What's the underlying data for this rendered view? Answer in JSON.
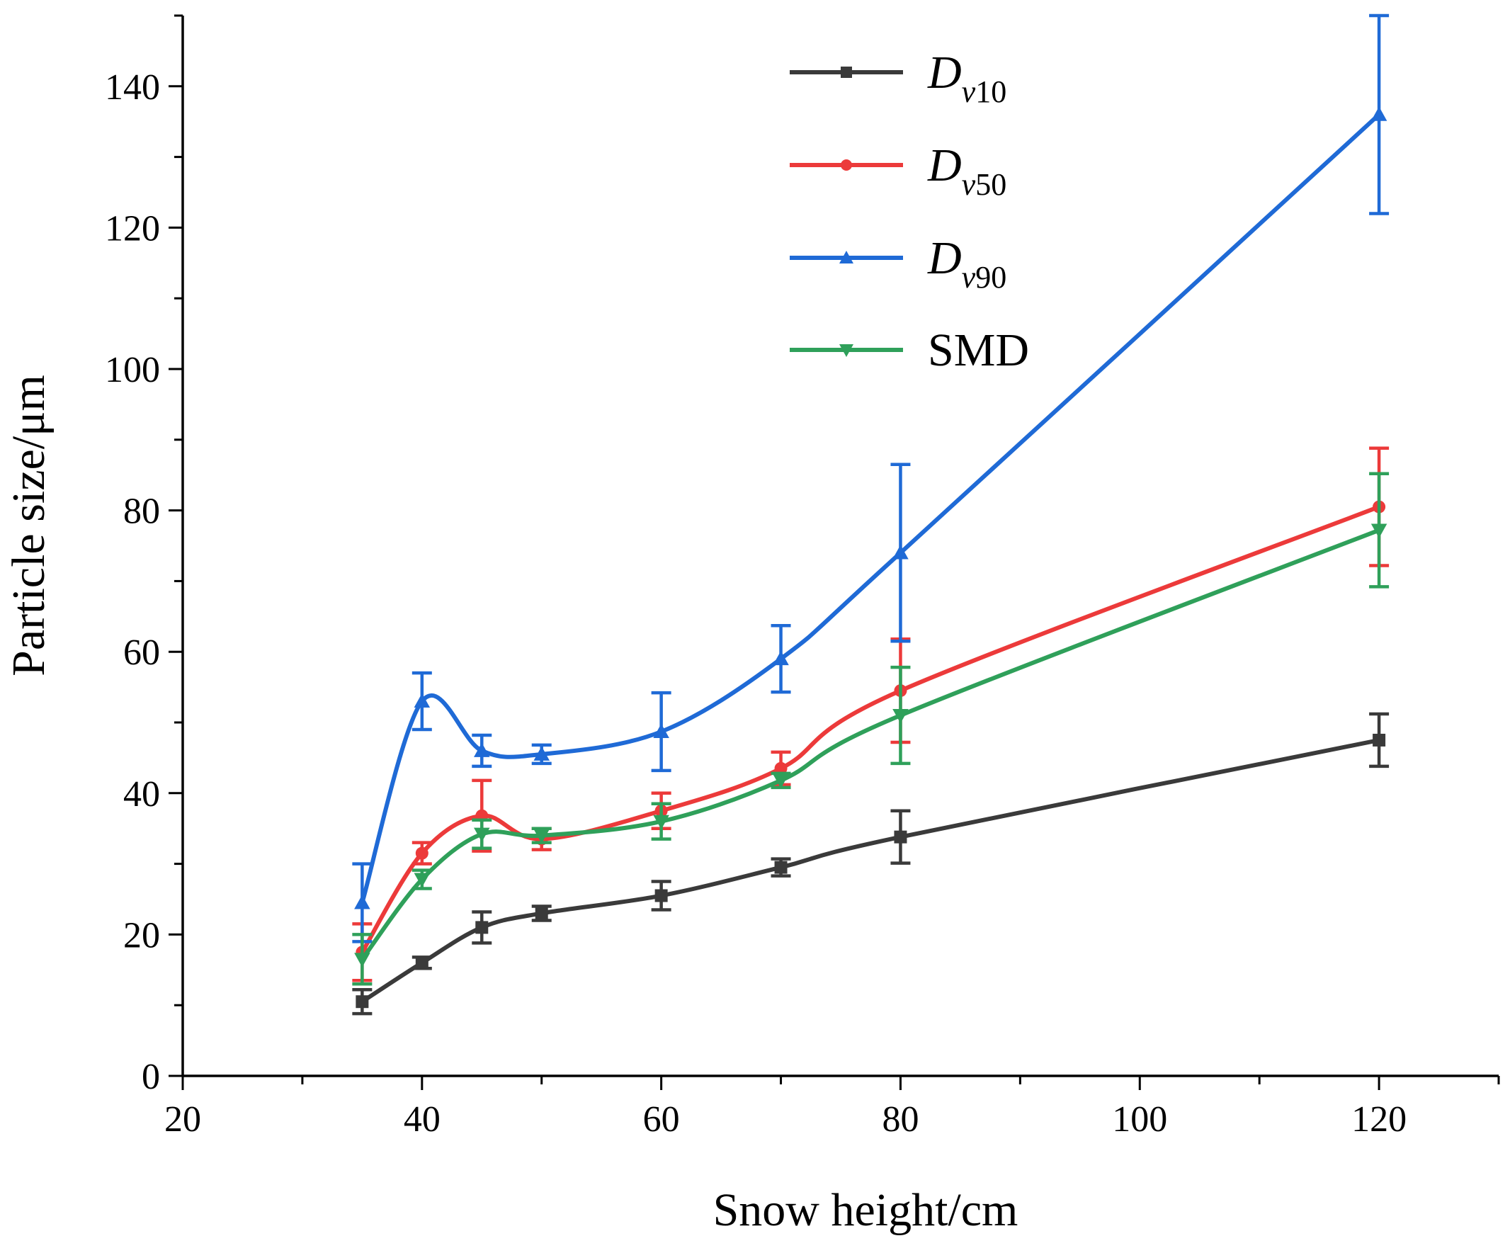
{
  "chart_data": {
    "type": "line",
    "title": "",
    "xlabel": "Snow height/cm",
    "ylabel": "Particle size/μm",
    "xlim": [
      20,
      130
    ],
    "ylim": [
      0,
      150
    ],
    "xticks": [
      20,
      40,
      60,
      80,
      100,
      120
    ],
    "yticks": [
      0,
      20,
      40,
      60,
      80,
      100,
      120,
      140
    ],
    "x_tick_labels": [
      "20",
      "40",
      "60",
      "80",
      "100",
      "120"
    ],
    "y_tick_labels": [
      "0",
      "20",
      "40",
      "60",
      "80",
      "100",
      "120",
      "140"
    ],
    "x": [
      35,
      40,
      45,
      50,
      60,
      70,
      80,
      120
    ],
    "legend_position": "top-center",
    "series": [
      {
        "name": "Dv10",
        "label_main": "D",
        "label_sub": "v10",
        "color": "#3a3a3a",
        "marker": "square",
        "values": [
          10.5,
          16.0,
          21.0,
          23.0,
          25.5,
          29.5,
          33.8,
          47.5
        ],
        "errors": [
          1.7,
          0.8,
          2.2,
          1.0,
          2.0,
          1.2,
          3.7,
          3.7
        ]
      },
      {
        "name": "Dv50",
        "label_main": "D",
        "label_sub": "v50",
        "color": "#ec3a3a",
        "marker": "circle",
        "values": [
          17.5,
          31.5,
          36.8,
          33.5,
          37.5,
          43.5,
          54.5,
          80.5
        ],
        "errors": [
          4.0,
          1.5,
          5.0,
          1.5,
          2.5,
          2.3,
          7.3,
          8.3
        ]
      },
      {
        "name": "Dv90",
        "label_main": "D",
        "label_sub": "v90",
        "color": "#1f6ad6",
        "marker": "triangle-up",
        "values": [
          24.5,
          53.0,
          46.0,
          45.5,
          48.7,
          59.0,
          74.0,
          136.0
        ],
        "errors": [
          5.5,
          4.0,
          2.2,
          1.3,
          5.5,
          4.7,
          12.5,
          14.0
        ]
      },
      {
        "name": "SMD",
        "label_main": "SMD",
        "label_sub": "",
        "color": "#2fa05a",
        "marker": "triangle-down",
        "values": [
          16.5,
          27.8,
          34.2,
          34.0,
          36.0,
          41.8,
          51.0,
          77.2
        ],
        "errors": [
          3.5,
          1.3,
          2.0,
          1.0,
          2.5,
          1.0,
          6.8,
          8.0
        ]
      }
    ]
  }
}
